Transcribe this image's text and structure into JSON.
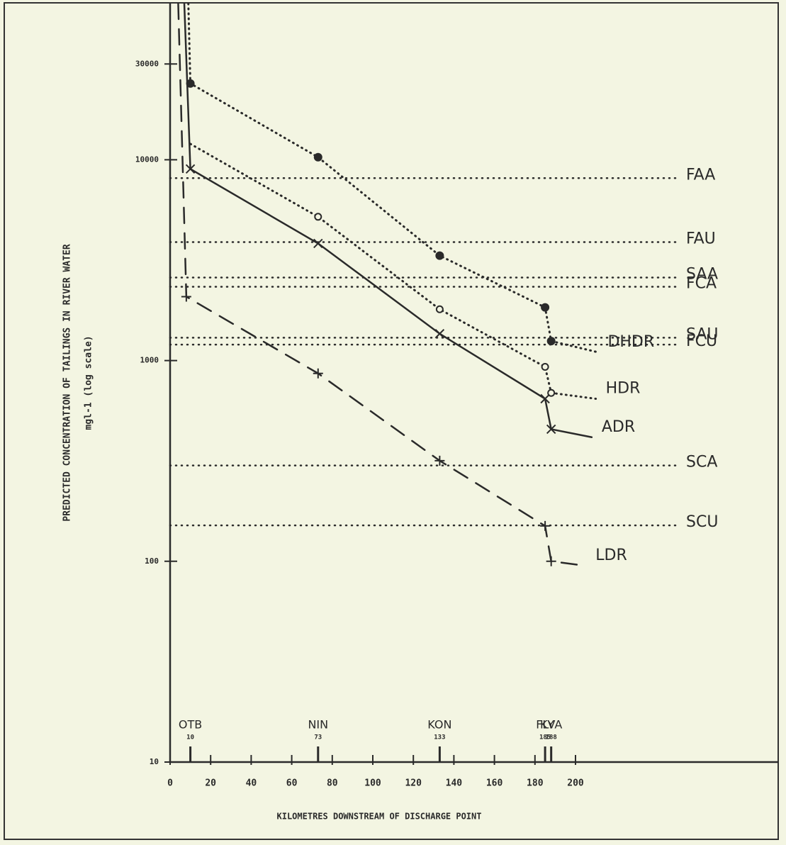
{
  "chart_data": {
    "type": "line",
    "ylabel": "PREDICTED CONCENTRATION OF TAILINGS IN RIVER WATER",
    "ylabel2": "mgl-1 (log scale)",
    "xlabel": "KILOMETRES DOWNSTREAM OF DISCHARGE POINT",
    "xlim": [
      0,
      300
    ],
    "ylim": [
      10,
      60000
    ],
    "log_y": true,
    "xticks": [
      0,
      20,
      40,
      60,
      80,
      100,
      120,
      140,
      160,
      180,
      200
    ],
    "yticks": [
      10,
      100,
      1000,
      10000,
      30000
    ],
    "stations": [
      {
        "name": "OTB",
        "km": 10
      },
      {
        "name": "NIN",
        "km": 73
      },
      {
        "name": "KON",
        "km": 133
      },
      {
        "name": "FLY",
        "km": 185
      },
      {
        "name": "KVA",
        "km": 188
      }
    ],
    "thresholds": [
      {
        "name": "FAA",
        "value": 8100
      },
      {
        "name": "FAU",
        "value": 3890
      },
      {
        "name": "SAA",
        "value": 2590
      },
      {
        "name": "FCA",
        "value": 2330
      },
      {
        "name": "SAU",
        "value": 1300
      },
      {
        "name": "FCU",
        "value": 1200
      },
      {
        "name": "SCA",
        "value": 300
      },
      {
        "name": "SCU",
        "value": 151
      }
    ],
    "color": "#2a2a2a",
    "series": [
      {
        "name": "DHDR",
        "marker": "dot",
        "dash": "dotted",
        "x": [
          9,
          10,
          73,
          133,
          185,
          188,
          211
        ],
        "values": [
          60000,
          24000,
          10300,
          3330,
          1840,
          1250,
          1100
        ]
      },
      {
        "name": "HDR",
        "marker": "circle",
        "dash": "dotted",
        "x": [
          10,
          73,
          133,
          185,
          188,
          210
        ],
        "values": [
          12000,
          5200,
          1800,
          930,
          690,
          645
        ]
      },
      {
        "name": "ADR",
        "marker": "cross",
        "dash": "solid",
        "x": [
          7,
          10,
          73,
          133,
          185,
          188,
          208
        ],
        "values": [
          60000,
          9000,
          3830,
          1360,
          645,
          455,
          415
        ]
      },
      {
        "name": "LDR",
        "marker": "plus",
        "dash": "dashed",
        "x": [
          4,
          8,
          73,
          133,
          185,
          188,
          205
        ],
        "values": [
          60000,
          2080,
          863,
          317,
          150,
          100,
          95
        ]
      }
    ]
  }
}
